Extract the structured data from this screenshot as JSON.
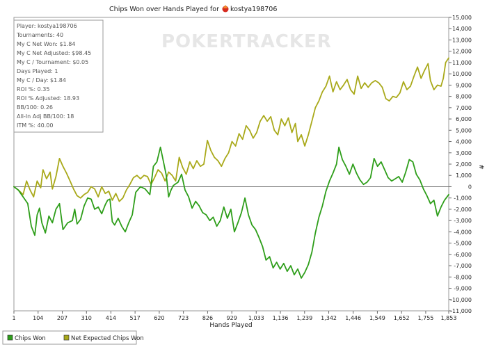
{
  "chart_data": {
    "type": "line",
    "title": "Chips Won over Hands Played for",
    "player": "kostya198706",
    "xlabel": "Hands Played",
    "ylabel": "#",
    "xlim": [
      1,
      1853
    ],
    "ylim": [
      -11000,
      15000
    ],
    "x_ticks": [
      "1",
      "104",
      "207",
      "310",
      "414",
      "517",
      "620",
      "723",
      "826",
      "929",
      "1,033",
      "1,136",
      "1,239",
      "1,342",
      "1,446",
      "1,549",
      "1,652",
      "1,755",
      "1,853"
    ],
    "x_tick_values": [
      1,
      104,
      207,
      310,
      414,
      517,
      620,
      723,
      826,
      929,
      1033,
      1136,
      1239,
      1342,
      1446,
      1549,
      1652,
      1755,
      1853
    ],
    "y_ticks": [
      "15,000",
      "14,000",
      "13,000",
      "12,000",
      "11,000",
      "10,000",
      "9,000",
      "8,000",
      "7,000",
      "6,000",
      "5,000",
      "4,000",
      "3,000",
      "2,000",
      "1,000",
      "0",
      "-1,000",
      "-2,000",
      "-3,000",
      "-4,000",
      "-5,000",
      "-6,000",
      "-7,000",
      "-8,000",
      "-9,000",
      "-10,000",
      "-11,000"
    ],
    "y_tick_values": [
      15000,
      14000,
      13000,
      12000,
      11000,
      10000,
      9000,
      8000,
      7000,
      6000,
      5000,
      4000,
      3000,
      2000,
      1000,
      0,
      -1000,
      -2000,
      -3000,
      -4000,
      -5000,
      -6000,
      -7000,
      -8000,
      -9000,
      -10000,
      -11000
    ],
    "legend_position": "bottom-left",
    "watermark": "POKERTRACKER",
    "series": [
      {
        "name": "Chips Won",
        "color": "#2e9e1a",
        "points": [
          [
            1,
            0
          ],
          [
            20,
            -300
          ],
          [
            40,
            -900
          ],
          [
            60,
            -1500
          ],
          [
            75,
            -3500
          ],
          [
            90,
            -4300
          ],
          [
            100,
            -2500
          ],
          [
            110,
            -1900
          ],
          [
            120,
            -3200
          ],
          [
            135,
            -4100
          ],
          [
            150,
            -2600
          ],
          [
            165,
            -3200
          ],
          [
            180,
            -2000
          ],
          [
            195,
            -1500
          ],
          [
            210,
            -3800
          ],
          [
            230,
            -3200
          ],
          [
            250,
            -3000
          ],
          [
            260,
            -2000
          ],
          [
            270,
            -3300
          ],
          [
            285,
            -2900
          ],
          [
            300,
            -1700
          ],
          [
            315,
            -1000
          ],
          [
            330,
            -1100
          ],
          [
            345,
            -2000
          ],
          [
            360,
            -1800
          ],
          [
            375,
            -2400
          ],
          [
            390,
            -1600
          ],
          [
            400,
            -1200
          ],
          [
            410,
            -1100
          ],
          [
            420,
            -3100
          ],
          [
            430,
            -3400
          ],
          [
            445,
            -2800
          ],
          [
            460,
            -3500
          ],
          [
            475,
            -4000
          ],
          [
            490,
            -3200
          ],
          [
            505,
            -2500
          ],
          [
            520,
            -500
          ],
          [
            540,
            0
          ],
          [
            560,
            -200
          ],
          [
            580,
            -700
          ],
          [
            595,
            1800
          ],
          [
            610,
            2200
          ],
          [
            625,
            3500
          ],
          [
            635,
            2500
          ],
          [
            650,
            1000
          ],
          [
            660,
            -900
          ],
          [
            670,
            -300
          ],
          [
            680,
            100
          ],
          [
            700,
            400
          ],
          [
            715,
            1100
          ],
          [
            730,
            -300
          ],
          [
            745,
            -900
          ],
          [
            760,
            -1900
          ],
          [
            775,
            -1300
          ],
          [
            790,
            -1700
          ],
          [
            805,
            -2300
          ],
          [
            820,
            -2500
          ],
          [
            835,
            -3000
          ],
          [
            850,
            -2700
          ],
          [
            865,
            -3500
          ],
          [
            880,
            -3000
          ],
          [
            895,
            -1800
          ],
          [
            910,
            -2800
          ],
          [
            925,
            -2000
          ],
          [
            940,
            -4000
          ],
          [
            955,
            -3200
          ],
          [
            970,
            -2300
          ],
          [
            985,
            -1000
          ],
          [
            1000,
            -2500
          ],
          [
            1015,
            -3400
          ],
          [
            1030,
            -3800
          ],
          [
            1045,
            -4500
          ],
          [
            1060,
            -5300
          ],
          [
            1075,
            -6500
          ],
          [
            1090,
            -6200
          ],
          [
            1105,
            -7200
          ],
          [
            1120,
            -6700
          ],
          [
            1135,
            -7300
          ],
          [
            1150,
            -6800
          ],
          [
            1165,
            -7500
          ],
          [
            1180,
            -7000
          ],
          [
            1195,
            -7800
          ],
          [
            1210,
            -7300
          ],
          [
            1225,
            -8100
          ],
          [
            1240,
            -7600
          ],
          [
            1255,
            -6900
          ],
          [
            1270,
            -5800
          ],
          [
            1285,
            -4100
          ],
          [
            1300,
            -2700
          ],
          [
            1315,
            -1700
          ],
          [
            1330,
            -400
          ],
          [
            1345,
            500
          ],
          [
            1360,
            1200
          ],
          [
            1375,
            2000
          ],
          [
            1385,
            3500
          ],
          [
            1400,
            2400
          ],
          [
            1415,
            1800
          ],
          [
            1430,
            1100
          ],
          [
            1445,
            2000
          ],
          [
            1460,
            1200
          ],
          [
            1475,
            600
          ],
          [
            1490,
            200
          ],
          [
            1505,
            400
          ],
          [
            1520,
            800
          ],
          [
            1535,
            2500
          ],
          [
            1550,
            1800
          ],
          [
            1565,
            2200
          ],
          [
            1580,
            1500
          ],
          [
            1595,
            800
          ],
          [
            1610,
            500
          ],
          [
            1625,
            700
          ],
          [
            1640,
            900
          ],
          [
            1655,
            400
          ],
          [
            1670,
            1300
          ],
          [
            1685,
            2400
          ],
          [
            1700,
            2200
          ],
          [
            1715,
            1100
          ],
          [
            1730,
            600
          ],
          [
            1745,
            -200
          ],
          [
            1760,
            -800
          ],
          [
            1775,
            -1500
          ],
          [
            1790,
            -1200
          ],
          [
            1805,
            -2600
          ],
          [
            1820,
            -1800
          ],
          [
            1835,
            -1200
          ],
          [
            1853,
            -700
          ]
        ]
      },
      {
        "name": "Net Expected Chips Won",
        "color": "#a9a91a",
        "points": [
          [
            1,
            0
          ],
          [
            20,
            -300
          ],
          [
            40,
            -700
          ],
          [
            55,
            500
          ],
          [
            70,
            -300
          ],
          [
            85,
            -900
          ],
          [
            100,
            500
          ],
          [
            115,
            -100
          ],
          [
            125,
            1500
          ],
          [
            140,
            700
          ],
          [
            155,
            1300
          ],
          [
            165,
            -200
          ],
          [
            180,
            900
          ],
          [
            195,
            2500
          ],
          [
            210,
            1800
          ],
          [
            225,
            1200
          ],
          [
            240,
            500
          ],
          [
            255,
            -200
          ],
          [
            270,
            -800
          ],
          [
            285,
            -1000
          ],
          [
            300,
            -700
          ],
          [
            315,
            -500
          ],
          [
            330,
            0
          ],
          [
            345,
            -200
          ],
          [
            360,
            -900
          ],
          [
            375,
            0
          ],
          [
            390,
            -600
          ],
          [
            405,
            -400
          ],
          [
            420,
            -1200
          ],
          [
            435,
            -600
          ],
          [
            450,
            -1300
          ],
          [
            465,
            -1000
          ],
          [
            480,
            -300
          ],
          [
            495,
            200
          ],
          [
            510,
            800
          ],
          [
            525,
            1000
          ],
          [
            540,
            700
          ],
          [
            555,
            1000
          ],
          [
            570,
            900
          ],
          [
            585,
            200
          ],
          [
            600,
            800
          ],
          [
            615,
            1500
          ],
          [
            630,
            1200
          ],
          [
            645,
            500
          ],
          [
            660,
            1300
          ],
          [
            675,
            1000
          ],
          [
            690,
            500
          ],
          [
            705,
            2600
          ],
          [
            720,
            1700
          ],
          [
            735,
            1100
          ],
          [
            750,
            2200
          ],
          [
            765,
            1600
          ],
          [
            780,
            2300
          ],
          [
            795,
            1800
          ],
          [
            810,
            2000
          ],
          [
            825,
            4100
          ],
          [
            840,
            3200
          ],
          [
            855,
            2600
          ],
          [
            870,
            2300
          ],
          [
            885,
            1800
          ],
          [
            900,
            2500
          ],
          [
            915,
            3000
          ],
          [
            930,
            4000
          ],
          [
            945,
            3600
          ],
          [
            960,
            4700
          ],
          [
            975,
            4200
          ],
          [
            990,
            5400
          ],
          [
            1005,
            5000
          ],
          [
            1020,
            4300
          ],
          [
            1035,
            4800
          ],
          [
            1050,
            5800
          ],
          [
            1065,
            6300
          ],
          [
            1080,
            5800
          ],
          [
            1095,
            6200
          ],
          [
            1110,
            5000
          ],
          [
            1125,
            4600
          ],
          [
            1140,
            6000
          ],
          [
            1155,
            5400
          ],
          [
            1170,
            6100
          ],
          [
            1185,
            4800
          ],
          [
            1200,
            5600
          ],
          [
            1210,
            4000
          ],
          [
            1225,
            4600
          ],
          [
            1240,
            3600
          ],
          [
            1255,
            4600
          ],
          [
            1270,
            5800
          ],
          [
            1285,
            7000
          ],
          [
            1300,
            7600
          ],
          [
            1315,
            8400
          ],
          [
            1330,
            8900
          ],
          [
            1345,
            9800
          ],
          [
            1360,
            8400
          ],
          [
            1375,
            9300
          ],
          [
            1390,
            8600
          ],
          [
            1405,
            9000
          ],
          [
            1420,
            9500
          ],
          [
            1435,
            8600
          ],
          [
            1450,
            8200
          ],
          [
            1465,
            9800
          ],
          [
            1480,
            8700
          ],
          [
            1495,
            9200
          ],
          [
            1510,
            8800
          ],
          [
            1525,
            9200
          ],
          [
            1540,
            9400
          ],
          [
            1555,
            9200
          ],
          [
            1570,
            8800
          ],
          [
            1585,
            7800
          ],
          [
            1600,
            7600
          ],
          [
            1615,
            8000
          ],
          [
            1630,
            7900
          ],
          [
            1645,
            8300
          ],
          [
            1660,
            9300
          ],
          [
            1675,
            8600
          ],
          [
            1690,
            8900
          ],
          [
            1705,
            9800
          ],
          [
            1720,
            10600
          ],
          [
            1735,
            9600
          ],
          [
            1750,
            10300
          ],
          [
            1765,
            10900
          ],
          [
            1775,
            9400
          ],
          [
            1790,
            8600
          ],
          [
            1805,
            9000
          ],
          [
            1820,
            8900
          ],
          [
            1830,
            9600
          ],
          [
            1840,
            11000
          ],
          [
            1853,
            11400
          ]
        ]
      }
    ],
    "stats": {
      "lines": [
        "Player: kostya198706",
        "Tournaments: 40",
        "My C Net Won: $1.84",
        "My C Net Adjusted: $98.45",
        "My C / Tournament: $0.05",
        "Days Played: 1",
        "My C / Day: $1.84",
        "ROI %: 0.35",
        "ROI % Adjusted: 18.93",
        "BB/100: 0.26",
        "All-In Adj BB/100: 18",
        "ITM %: 40.00"
      ]
    }
  }
}
